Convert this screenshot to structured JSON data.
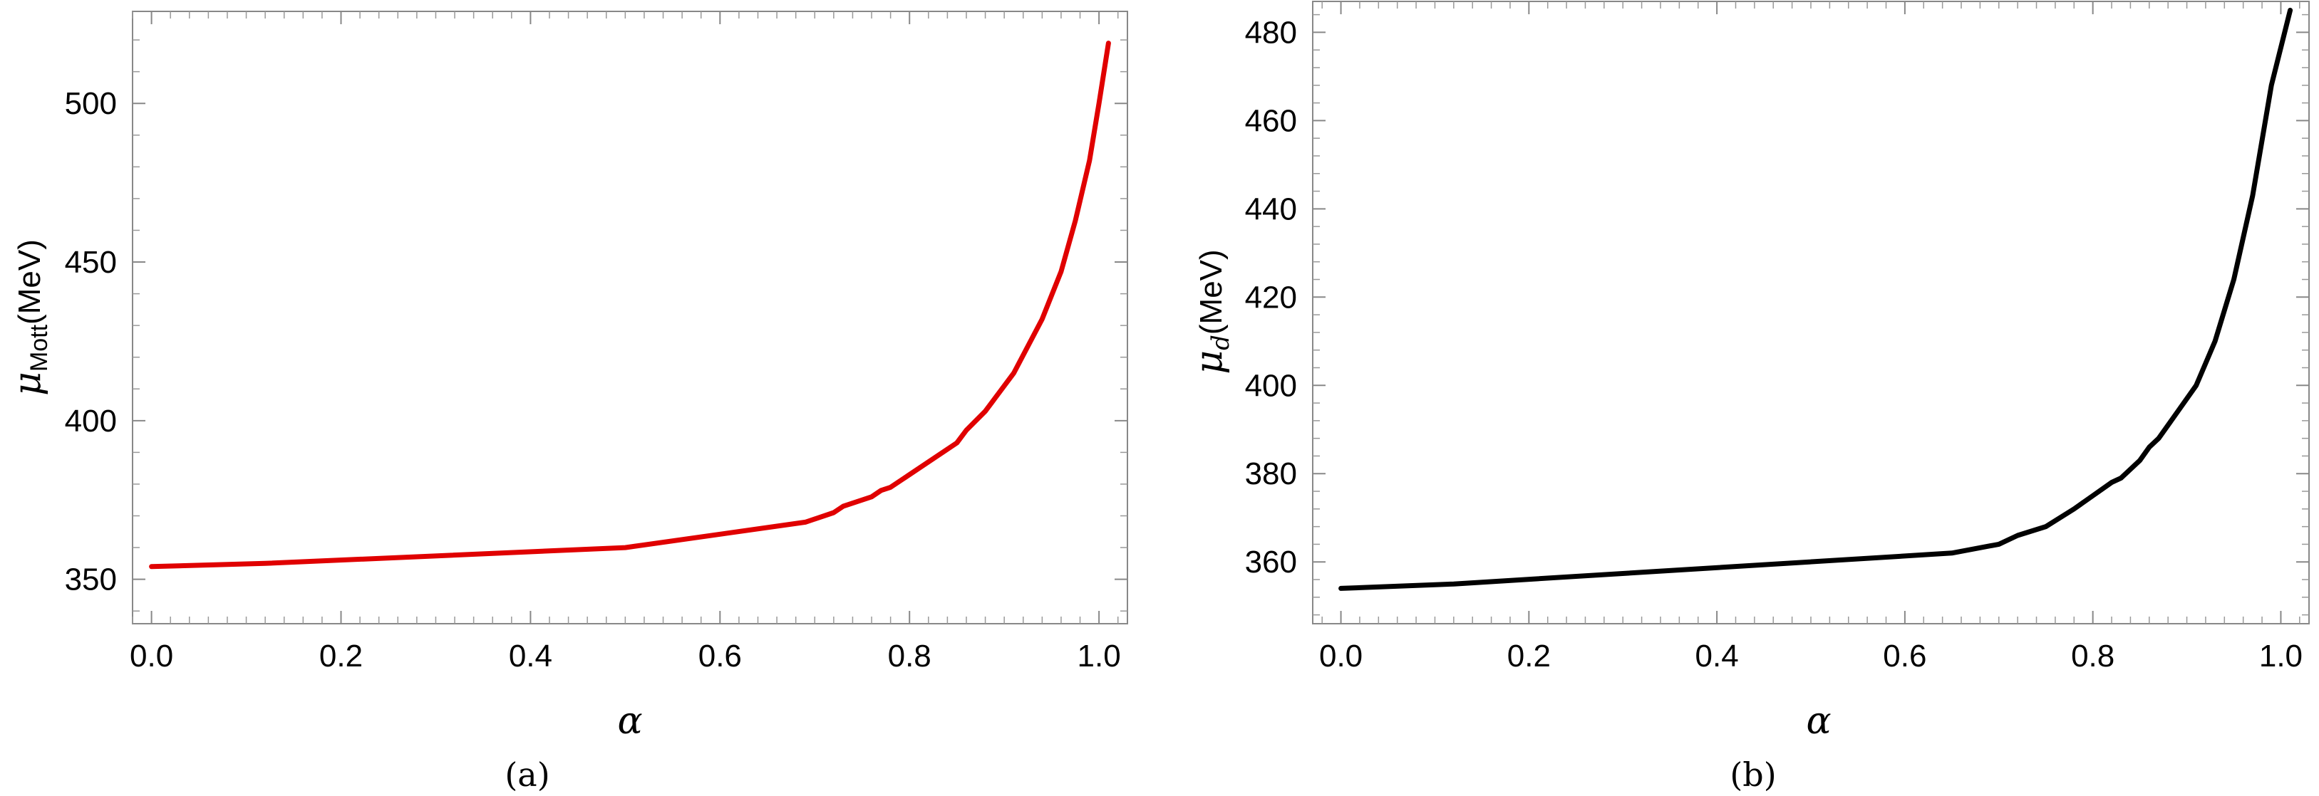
{
  "chart_data": [
    {
      "type": "line",
      "caption": "(a)",
      "xlabel": "α",
      "ylabel_main": "μ",
      "ylabel_sub": "Mott",
      "ylabel_unit": "(MeV)",
      "xlim": [
        -0.02,
        1.03
      ],
      "ylim": [
        336,
        529
      ],
      "xticks": [
        0.0,
        0.2,
        0.4,
        0.6,
        0.8,
        1.0
      ],
      "xtick_labels": [
        "0.0",
        "0.2",
        "0.4",
        "0.6",
        "0.8",
        "1.0"
      ],
      "yticks": [
        350,
        400,
        450,
        500
      ],
      "ytick_labels": [
        "350",
        "400",
        "450",
        "500"
      ],
      "grid": false,
      "series": [
        {
          "color": "#e00000",
          "x": [
            0.0,
            0.12,
            0.5,
            0.69,
            0.72,
            0.73,
            0.76,
            0.77,
            0.78,
            0.85,
            0.86,
            0.88,
            0.91,
            0.94,
            0.96,
            0.975,
            0.99,
            1.0,
            1.01
          ],
          "y": [
            354,
            355,
            360,
            368,
            371,
            373,
            376,
            378,
            379,
            393,
            397,
            403,
            415,
            432,
            447,
            463,
            482,
            500,
            519
          ]
        }
      ]
    },
    {
      "type": "line",
      "caption": "(b)",
      "xlabel": "α",
      "ylabel_main": "μ",
      "ylabel_sub": "d",
      "ylabel_unit": "(MeV)",
      "xlim": [
        -0.03,
        1.03
      ],
      "ylim": [
        346,
        487
      ],
      "xticks": [
        0.0,
        0.2,
        0.4,
        0.6,
        0.8,
        1.0
      ],
      "xtick_labels": [
        "0.0",
        "0.2",
        "0.4",
        "0.6",
        "0.8",
        "1.0"
      ],
      "yticks": [
        360,
        380,
        400,
        420,
        440,
        460,
        480
      ],
      "ytick_labels": [
        "360",
        "380",
        "400",
        "420",
        "440",
        "460",
        "480"
      ],
      "grid": false,
      "series": [
        {
          "color": "#000000",
          "x": [
            0.0,
            0.12,
            0.65,
            0.7,
            0.72,
            0.75,
            0.78,
            0.8,
            0.82,
            0.83,
            0.85,
            0.86,
            0.87,
            0.89,
            0.91,
            0.93,
            0.95,
            0.97,
            0.99,
            1.01
          ],
          "y": [
            354,
            355,
            362,
            364,
            366,
            368,
            372,
            375,
            378,
            379,
            383,
            386,
            388,
            394,
            400,
            410,
            424,
            443,
            468,
            485
          ]
        }
      ]
    }
  ]
}
